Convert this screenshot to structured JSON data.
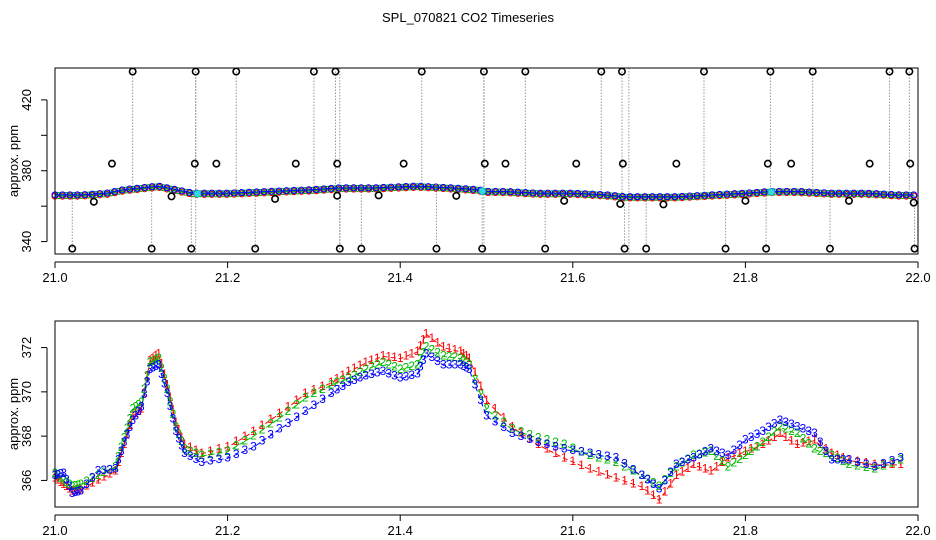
{
  "chart_data": [
    {
      "type": "line",
      "title": "SPL_070821  CO2 Timeseries",
      "ylabel": "approx. ppm",
      "xlabel": "",
      "xlim": [
        21.0,
        22.0
      ],
      "ylim": [
        333,
        438
      ],
      "xticks": [
        21.0,
        21.2,
        21.4,
        21.6,
        21.8,
        22.0
      ],
      "xtick_labels": [
        "21.0",
        "21.2",
        "21.4",
        "21.6",
        "21.8",
        "22.0"
      ],
      "yticks": [
        340,
        380,
        420
      ],
      "ytick_labels": [
        "340",
        "380",
        "420"
      ],
      "yticks_minor": [
        360,
        400
      ],
      "series_names": [
        "1",
        "2",
        "3"
      ],
      "series_colors": [
        "#ff0000",
        "#00bb00",
        "#0000ff"
      ],
      "baseline_x": [
        21.0,
        21.03,
        21.06,
        21.08,
        21.1,
        21.12,
        21.14,
        21.16,
        21.2,
        21.25,
        21.3,
        21.33,
        21.37,
        21.42,
        21.46,
        21.49,
        21.5,
        21.52,
        21.56,
        21.6,
        21.64,
        21.66,
        21.67,
        21.72,
        21.76,
        21.8,
        21.83,
        21.86,
        21.9,
        21.94,
        21.98,
        21.995
      ],
      "baseline_y": [
        366,
        366,
        367,
        369,
        370,
        371,
        369,
        367,
        367,
        368,
        369,
        370,
        370,
        371,
        370,
        369,
        368,
        368,
        367,
        367,
        366,
        365,
        365,
        365,
        366,
        367,
        368,
        368,
        367,
        367,
        366,
        366
      ],
      "high_outliers": [
        21.09,
        21.163,
        21.21,
        21.3,
        21.325,
        21.425,
        21.497,
        21.545,
        21.633,
        21.657,
        21.752,
        21.829,
        21.878,
        21.967,
        21.99
      ],
      "mid_outliers": [
        21.066,
        21.162,
        21.187,
        21.279,
        21.327,
        21.404,
        21.498,
        21.522,
        21.604,
        21.658,
        21.72,
        21.826,
        21.853,
        21.944,
        21.991
      ],
      "low_outliers": [
        21.02,
        21.112,
        21.158,
        21.232,
        21.33,
        21.355,
        21.442,
        21.495,
        21.568,
        21.66,
        21.685,
        21.777,
        21.824,
        21.898,
        21.996
      ],
      "small_dips": [
        21.045,
        21.135,
        21.255,
        21.327,
        21.375,
        21.465,
        21.59,
        21.655,
        21.705,
        21.8,
        21.92,
        21.995
      ]
    },
    {
      "type": "line",
      "title": "",
      "ylabel": "approx. ppm",
      "xlabel": "",
      "xlim": [
        21.0,
        22.0
      ],
      "ylim": [
        364.8,
        373.2
      ],
      "xticks": [
        21.0,
        21.2,
        21.4,
        21.6,
        21.8,
        22.0
      ],
      "xtick_labels": [
        "21.0",
        "21.2",
        "21.4",
        "21.6",
        "21.8",
        "22.0"
      ],
      "yticks": [
        366,
        368,
        370,
        372
      ],
      "ytick_labels": [
        "366",
        "368",
        "370",
        "372"
      ],
      "x": [
        21.0,
        21.01,
        21.02,
        21.03,
        21.05,
        21.07,
        21.08,
        21.09,
        21.1,
        21.11,
        21.12,
        21.13,
        21.14,
        21.15,
        21.17,
        21.2,
        21.23,
        21.26,
        21.29,
        21.32,
        21.34,
        21.36,
        21.38,
        21.4,
        21.42,
        21.43,
        21.45,
        21.47,
        21.48,
        21.5,
        21.53,
        21.56,
        21.59,
        21.62,
        21.65,
        21.68,
        21.7,
        21.72,
        21.74,
        21.76,
        21.78,
        21.8,
        21.82,
        21.84,
        21.86,
        21.88,
        21.9,
        21.92,
        21.95,
        21.98
      ],
      "series": [
        {
          "name": "1",
          "marker": "1",
          "color": "#ff0000",
          "values": [
            366.1,
            365.8,
            365.5,
            365.6,
            366.0,
            366.4,
            367.6,
            368.9,
            369.2,
            371.4,
            371.7,
            370.3,
            368.6,
            367.6,
            367.2,
            367.5,
            368.2,
            369.0,
            369.9,
            370.4,
            370.9,
            371.3,
            371.6,
            371.5,
            371.8,
            372.6,
            372.0,
            371.8,
            371.5,
            369.6,
            368.4,
            367.6,
            367.0,
            366.5,
            366.1,
            365.7,
            365.1,
            366.2,
            366.7,
            366.4,
            367.0,
            367.3,
            367.6,
            368.1,
            367.6,
            367.8,
            367.2,
            366.9,
            366.7,
            366.7
          ]
        },
        {
          "name": "2",
          "marker": "2",
          "color": "#00bb00",
          "values": [
            366.3,
            366.0,
            365.7,
            365.8,
            366.2,
            366.6,
            367.9,
            369.2,
            369.5,
            371.3,
            371.5,
            370.1,
            368.4,
            367.4,
            367.1,
            367.3,
            368.0,
            368.8,
            369.7,
            370.3,
            370.6,
            371.0,
            371.3,
            371.0,
            371.2,
            372.0,
            371.6,
            371.5,
            371.2,
            369.2,
            368.3,
            367.9,
            367.6,
            367.1,
            366.8,
            366.2,
            365.7,
            366.6,
            367.1,
            367.3,
            366.6,
            367.1,
            367.7,
            368.4,
            368.1,
            367.4,
            367.1,
            366.7,
            366.5,
            366.9
          ]
        },
        {
          "name": "3",
          "marker": "3",
          "color": "#0000ff",
          "values": [
            366.2,
            366.3,
            365.4,
            365.5,
            366.4,
            366.5,
            367.7,
            368.7,
            369.3,
            371.0,
            371.2,
            369.9,
            368.2,
            367.2,
            366.8,
            367.0,
            367.5,
            368.3,
            369.1,
            369.9,
            370.4,
            370.7,
            370.9,
            370.6,
            370.8,
            371.7,
            371.2,
            371.2,
            371.0,
            368.9,
            368.1,
            367.7,
            367.4,
            367.2,
            367.0,
            366.2,
            365.6,
            366.7,
            367.0,
            367.4,
            367.1,
            367.8,
            368.2,
            368.7,
            368.4,
            368.1,
            366.9,
            366.9,
            366.6,
            367.0
          ]
        }
      ]
    }
  ]
}
